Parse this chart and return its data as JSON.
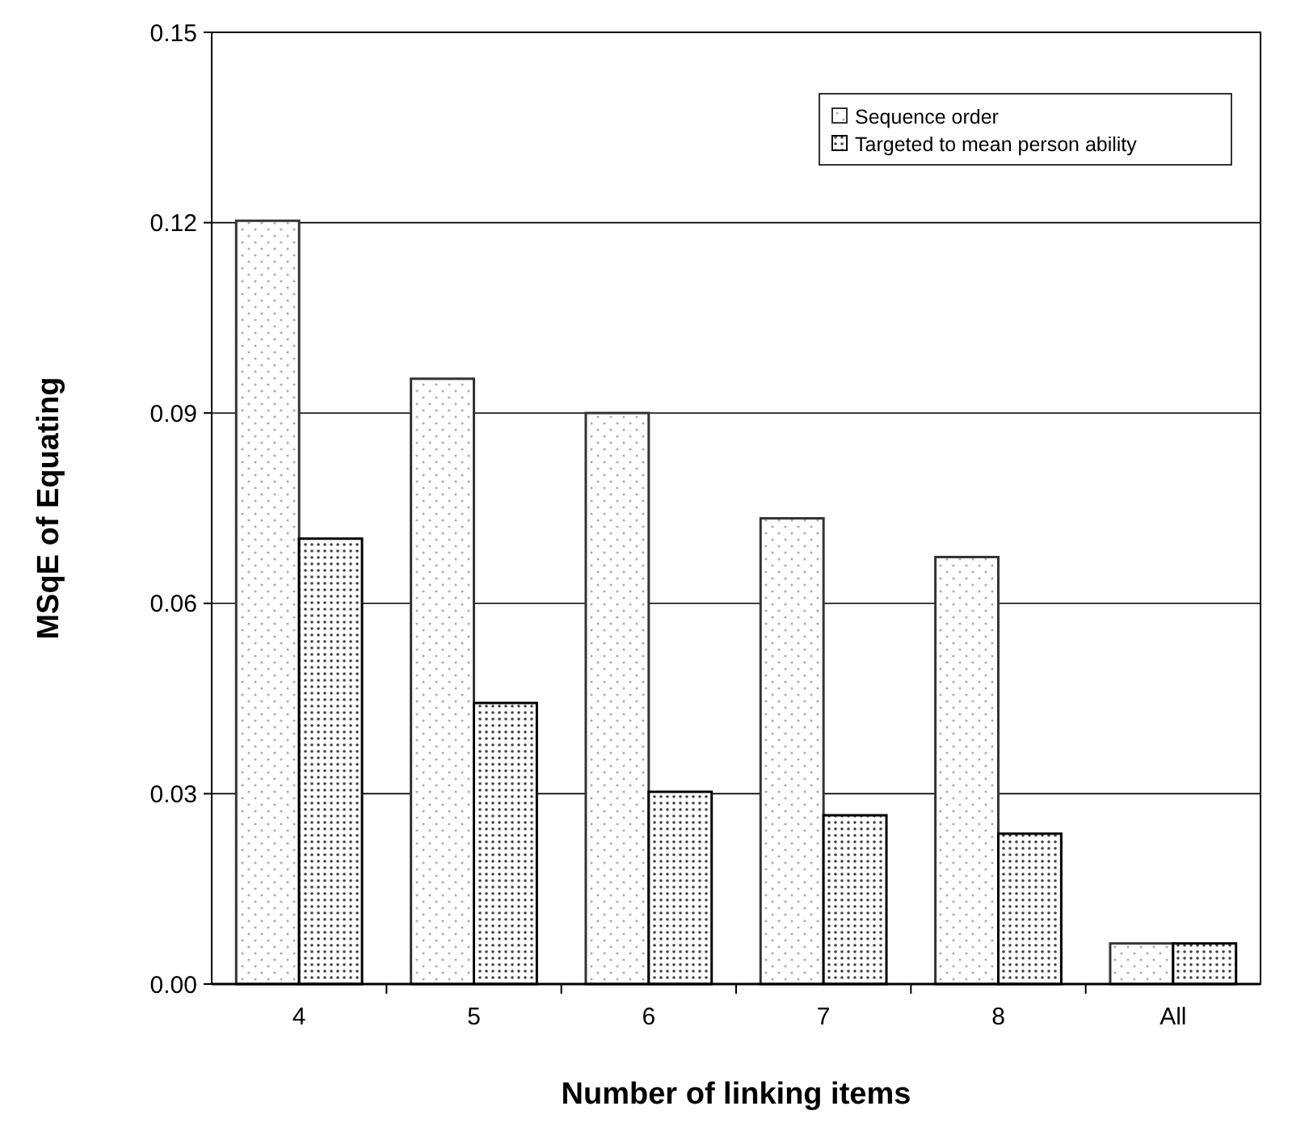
{
  "chart_data": {
    "type": "bar",
    "xlabel": "Number of linking items",
    "ylabel": "MSqE of Equating",
    "categories": [
      "4",
      "5",
      "6",
      "7",
      "8",
      "All"
    ],
    "series": [
      {
        "name": "Sequence order",
        "color": "#333333",
        "values": [
          0.1203,
          0.0954,
          0.09,
          0.0734,
          0.0673,
          0.0064
        ]
      },
      {
        "name": "Targeted to mean person ability",
        "color": "#000000",
        "values": [
          0.0702,
          0.0443,
          0.0303,
          0.0266,
          0.0237,
          0.0064
        ]
      }
    ],
    "ylim": [
      0,
      0.15
    ],
    "yticks": [
      {
        "value": 0,
        "label": "0.00"
      },
      {
        "value": 0.03,
        "label": "0.03"
      },
      {
        "value": 0.06,
        "label": "0.06"
      },
      {
        "value": 0.09,
        "label": "0.09"
      },
      {
        "value": 0.12,
        "label": "0.12"
      },
      {
        "value": 0.15,
        "label": "0.15"
      }
    ],
    "grid": "y",
    "legend": "top right"
  }
}
